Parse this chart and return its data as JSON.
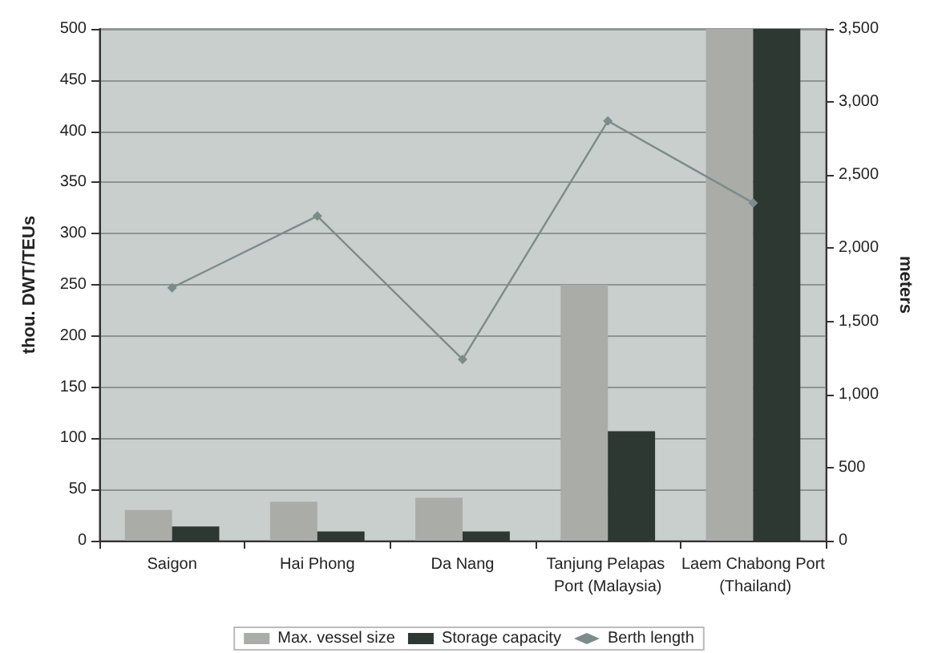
{
  "chart_data": {
    "type": "bar",
    "categories": [
      "Saigon",
      "Hai Phong",
      "Da Nang",
      "Tanjung Pelapas Port (Malaysia)",
      "Laem Chabong Port (Thailand)"
    ],
    "ylabel": "thou. DWT/TEUs",
    "y2label": "meters",
    "series": [
      {
        "name": "Max. vessel size",
        "color": "#a9aca7",
        "values": [
          30,
          38,
          42,
          250,
          500
        ]
      },
      {
        "name": "Storage capacity",
        "color": "#2e3833",
        "values": [
          14,
          9,
          9,
          107,
          500
        ]
      },
      {
        "name": "Berth length",
        "type": "line",
        "axis": "y2",
        "color": "#7d8b8a",
        "marker": "diamond",
        "values": [
          1730,
          2220,
          1240,
          2870,
          2310
        ]
      }
    ],
    "ylim": [
      0,
      500
    ],
    "yticks": [
      0,
      50,
      100,
      150,
      200,
      250,
      300,
      350,
      400,
      450,
      500
    ],
    "y2lim": [
      0,
      3500
    ],
    "y2ticks": [
      0,
      {
        "value": 500,
        "label": "500"
      },
      {
        "value": 1000,
        "label": "1,000"
      },
      {
        "value": 1500,
        "label": "1,500"
      },
      {
        "value": 2000,
        "label": "2,000"
      },
      {
        "value": 2500,
        "label": "2,500"
      },
      {
        "value": 3000,
        "label": "3,000"
      },
      {
        "value": 3500,
        "label": "3,500"
      }
    ],
    "grid": "y",
    "legend": "bottom"
  }
}
